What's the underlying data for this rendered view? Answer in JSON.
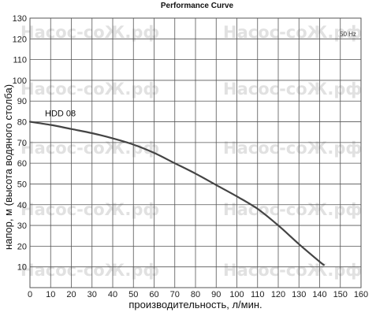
{
  "chart_data": {
    "type": "line",
    "title": "Performance Curve",
    "xlabel": "производительность, л/мин.",
    "ylabel": "напор, м (высота водяного столба)",
    "xlim": [
      0,
      160
    ],
    "ylim": [
      0,
      130
    ],
    "xticks": [
      0,
      10,
      20,
      30,
      40,
      50,
      60,
      70,
      80,
      90,
      100,
      110,
      120,
      130,
      140,
      150,
      160
    ],
    "yticks": [
      10,
      20,
      30,
      40,
      50,
      60,
      70,
      80,
      90,
      100,
      110,
      120,
      130
    ],
    "grid": true,
    "annotation": "50 Hz",
    "watermark": "Насос-соЖ.рф",
    "series": [
      {
        "name": "HDD 08",
        "x": [
          0,
          10,
          20,
          30,
          40,
          50,
          60,
          70,
          80,
          90,
          100,
          110,
          120,
          130,
          140,
          142
        ],
        "y": [
          80,
          78.5,
          76.5,
          74.5,
          72,
          69,
          65,
          60,
          55,
          49.5,
          44,
          38,
          30,
          21,
          12.5,
          11
        ]
      }
    ]
  }
}
